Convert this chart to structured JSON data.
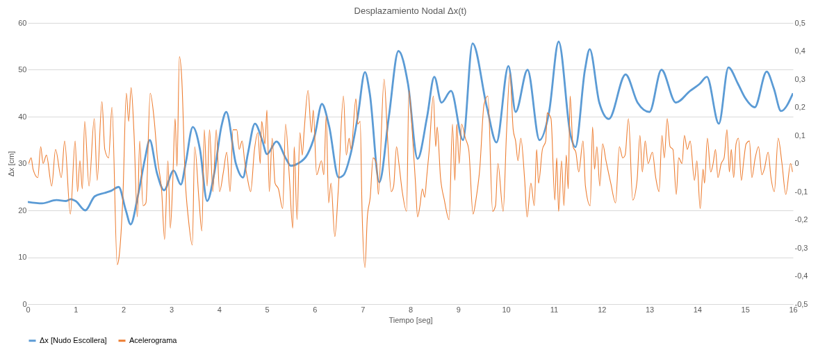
{
  "chart_data": {
    "type": "line",
    "title": "Desplazamiento Nodal Δx(t)",
    "xlabel": "Tiempo [seg]",
    "ylabel": "Δx [cm]",
    "xlim": [
      0,
      16
    ],
    "xticks": [
      0,
      1,
      2,
      3,
      4,
      5,
      6,
      7,
      8,
      9,
      10,
      11,
      12,
      13,
      14,
      15,
      16
    ],
    "ylim": [
      0,
      60
    ],
    "yticks": [
      0,
      10,
      20,
      30,
      40,
      50,
      60
    ],
    "y2lim": [
      -0.5,
      0.5
    ],
    "y2ticks": [
      {
        "value": -0.5,
        "label": "-0,5"
      },
      {
        "value": -0.4,
        "label": "-0,4"
      },
      {
        "value": -0.3,
        "label": "-0,3"
      },
      {
        "value": -0.2,
        "label": "-0,2"
      },
      {
        "value": -0.1,
        "label": "-0,1"
      },
      0,
      {
        "value": 0.1,
        "label": "0,1"
      },
      {
        "value": 0.2,
        "label": "0,2"
      },
      {
        "value": 0.3,
        "label": "0,3"
      },
      {
        "value": 0.4,
        "label": "0,4"
      },
      {
        "value": 0.5,
        "label": "0,5"
      }
    ],
    "grid": "y",
    "legend": "bottom",
    "marker": "none",
    "line_style": "solid",
    "series": [
      {
        "name": "Δx [Nudo Escollera]",
        "color": "#5b9bd5",
        "x": [
          0,
          0.3,
          0.6,
          0.8,
          0.9,
          1.0,
          1.2,
          1.4,
          1.6,
          1.75,
          1.9,
          2.05,
          2.15,
          2.3,
          2.45,
          2.55,
          2.7,
          2.85,
          3.05,
          3.2,
          3.3,
          3.45,
          3.6,
          3.75,
          3.9,
          4.05,
          4.15,
          4.35,
          4.5,
          4.6,
          4.75,
          4.9,
          5.0,
          5.2,
          5.4,
          5.5,
          5.65,
          5.85,
          6.0,
          6.15,
          6.3,
          6.5,
          6.6,
          6.75,
          6.9,
          7.05,
          7.15,
          7.35,
          7.55,
          7.75,
          7.95,
          8.15,
          8.35,
          8.5,
          8.65,
          8.85,
          9.1,
          9.3,
          9.6,
          9.8,
          10.05,
          10.2,
          10.45,
          10.7,
          10.9,
          11.1,
          11.35,
          11.45,
          11.65,
          11.75,
          11.95,
          12.15,
          12.5,
          12.75,
          13.0,
          13.25,
          13.55,
          13.85,
          14.05,
          14.2,
          14.45,
          14.65,
          14.85,
          15.0,
          15.2,
          15.45,
          15.6,
          15.75,
          16.0
        ],
        "values": [
          21.8,
          21.5,
          22.2,
          22.0,
          22.4,
          22.0,
          20.0,
          23.0,
          23.7,
          24.2,
          25.0,
          20,
          17,
          23,
          31,
          35,
          28,
          24.3,
          28.5,
          25.5,
          30,
          37.8,
          33,
          22,
          28,
          38,
          41,
          30,
          27,
          32,
          38.5,
          35,
          32,
          34.7,
          31,
          29.5,
          30,
          32,
          36,
          42.7,
          38,
          27,
          27.5,
          32,
          40,
          49.5,
          45,
          26,
          40,
          54,
          47,
          31,
          40,
          48.5,
          43,
          45.5,
          35,
          55.6,
          42,
          34.5,
          50.8,
          41,
          50,
          35,
          41,
          56,
          36,
          33.5,
          50,
          54.4,
          43,
          39.5,
          49,
          43,
          41,
          50,
          43,
          45.5,
          47,
          48.5,
          38.5,
          50.5,
          47,
          44,
          42,
          49.6,
          46,
          41.2,
          45
        ]
      },
      {
        "name": "Acelerograma",
        "color": "#ed7d31",
        "axis": "y2",
        "x": [
          0.02,
          0.07,
          0.11,
          0.21,
          0.27,
          0.32,
          0.39,
          0.5,
          0.58,
          0.7,
          0.77,
          0.89,
          0.99,
          1.04,
          1.09,
          1.14,
          1.19,
          1.28,
          1.39,
          1.45,
          1.55,
          1.61,
          1.69,
          1.76,
          1.87,
          1.91,
          1.99,
          2.06,
          2.11,
          2.16,
          2.22,
          2.29,
          2.34,
          2.41,
          2.47,
          2.56,
          2.64,
          2.71,
          2.8,
          2.86,
          2.93,
          2.98,
          3.03,
          3.08,
          3.12,
          3.17,
          3.22,
          3.29,
          3.36,
          3.44,
          3.49,
          3.58,
          3.64,
          3.69,
          3.75,
          3.8,
          3.87,
          3.94,
          4.01,
          4.09,
          4.16,
          4.23,
          4.29,
          4.37,
          4.42,
          4.48,
          4.54,
          4.59,
          4.66,
          4.74,
          4.81,
          4.86,
          4.89,
          4.96,
          5.0,
          5.05,
          5.11,
          5.17,
          5.24,
          5.33,
          5.39,
          5.47,
          5.54,
          5.57,
          5.63,
          5.69,
          5.74,
          5.78,
          5.86,
          5.93,
          5.97,
          6.04,
          6.14,
          6.19,
          6.24,
          6.29,
          6.34,
          6.42,
          6.49,
          6.6,
          6.66,
          6.72,
          6.76,
          6.86,
          6.9,
          6.95,
          6.99,
          7.05,
          7.1,
          7.16,
          7.22,
          7.29,
          7.33,
          7.45,
          7.52,
          7.6,
          7.65,
          7.71,
          7.76,
          7.83,
          7.92,
          7.97,
          8.04,
          8.11,
          8.15,
          8.2,
          8.25,
          8.3,
          8.34,
          8.39,
          8.48,
          8.53,
          8.56,
          8.63,
          8.71,
          8.81,
          8.88,
          8.93,
          8.97,
          9.02,
          9.07,
          9.15,
          9.22,
          9.31,
          9.37,
          9.45,
          9.54,
          9.62,
          9.72,
          9.78,
          9.83,
          9.94,
          10.01,
          10.08,
          10.15,
          10.2,
          10.25,
          10.31,
          10.39,
          10.44,
          10.52,
          10.59,
          10.64,
          10.68,
          10.76,
          10.83,
          10.86,
          10.94,
          11.02,
          11.06,
          11.1,
          11.16,
          11.21,
          11.26,
          11.3,
          11.34,
          11.4,
          11.46,
          11.52,
          11.61,
          11.66,
          11.76,
          11.81,
          11.85,
          11.9,
          11.96,
          12.02,
          12.09,
          12.19,
          12.29,
          12.37,
          12.44,
          12.49,
          12.56,
          12.65,
          12.74,
          12.8,
          12.85,
          12.91,
          12.97,
          13.06,
          13.13,
          13.2,
          13.26,
          13.31,
          13.37,
          13.43,
          13.49,
          13.56,
          13.61,
          13.68,
          13.73,
          13.79,
          13.85,
          13.94,
          13.99,
          14.06,
          14.12,
          14.15,
          14.21,
          14.28,
          14.33,
          14.38,
          14.43,
          14.5,
          14.56,
          14.62,
          14.67,
          14.71,
          14.76,
          14.81,
          14.86,
          14.92,
          14.97,
          15.02,
          15.09,
          15.14,
          15.21,
          15.28,
          15.35,
          15.4,
          15.48,
          15.54,
          15.61,
          15.69,
          15.77,
          15.85,
          15.95,
          15.99
        ],
        "values": [
          0.0,
          0.02,
          -0.02,
          -0.05,
          0.06,
          0.0,
          0.03,
          -0.08,
          0.05,
          -0.05,
          0.08,
          -0.18,
          0.08,
          -0.1,
          0.01,
          -0.09,
          0.15,
          -0.08,
          0.16,
          -0.06,
          0.22,
          0.05,
          0.02,
          0.2,
          -0.36,
          -0.33,
          -0.11,
          0.25,
          0.15,
          0.27,
          0.11,
          -0.19,
          0.08,
          -0.15,
          -0.14,
          0.25,
          0.16,
          0.02,
          -0.1,
          -0.27,
          0.01,
          -0.23,
          -0.07,
          0.16,
          -0.01,
          0.38,
          0.3,
          -0.05,
          -0.2,
          -0.29,
          0.06,
          -0.13,
          -0.24,
          0.12,
          -0.08,
          0.12,
          -0.1,
          0.12,
          -0.1,
          -0.03,
          0.04,
          -0.1,
          0.12,
          0.12,
          0.05,
          0.08,
          0.0,
          -0.05,
          -0.1,
          0.05,
          0.11,
          0.0,
          0.15,
          0.07,
          0.19,
          -0.1,
          0.09,
          -0.07,
          -0.09,
          -0.16,
          0.14,
          -0.05,
          -0.23,
          0.06,
          -0.2,
          0.11,
          0.03,
          0.12,
          0.26,
          0.11,
          0.19,
          -0.04,
          0.01,
          -0.04,
          0.17,
          -0.14,
          -0.07,
          -0.26,
          -0.1,
          0.24,
          0.03,
          0.09,
          0.05,
          0.23,
          0.14,
          0.15,
          -0.17,
          -0.37,
          -0.19,
          -0.12,
          0.02,
          0.0,
          -0.11,
          0.3,
          0.1,
          -0.1,
          -0.08,
          0.06,
          0.0,
          -0.1,
          -0.17,
          0.26,
          0.11,
          -0.08,
          -0.19,
          -0.15,
          -0.09,
          -0.12,
          -0.05,
          0.04,
          0.24,
          0.06,
          0.13,
          -0.05,
          -0.13,
          -0.2,
          0.14,
          -0.06,
          0.14,
          0.0,
          0.14,
          0.09,
          0.05,
          -0.18,
          -0.13,
          -0.02,
          0.21,
          0.24,
          -0.17,
          -0.15,
          0.0,
          -0.17,
          0.11,
          0.32,
          0.12,
          0.08,
          0.01,
          0.09,
          -0.06,
          -0.19,
          -0.07,
          -0.15,
          0.05,
          -0.07,
          0.05,
          0.08,
          0.18,
          0.16,
          -0.13,
          0.02,
          -0.17,
          0.01,
          -0.15,
          0.03,
          -0.09,
          0.24,
          0.06,
          0.04,
          -0.03,
          0.08,
          -0.08,
          -0.15,
          0.13,
          -0.02,
          0.06,
          -0.08,
          0.07,
          0.01,
          -0.07,
          -0.14,
          0.06,
          0.02,
          0.03,
          0.16,
          -0.13,
          -0.06,
          0.1,
          -0.03,
          0.08,
          0.0,
          0.04,
          -0.05,
          -0.1,
          0.1,
          0.02,
          0.16,
          0.06,
          0.05,
          -0.11,
          0.02,
          0.0,
          0.1,
          0.05,
          0.08,
          -0.06,
          0.01,
          -0.16,
          -0.02,
          -0.07,
          0.09,
          -0.03,
          0.0,
          0.05,
          -0.05,
          0.0,
          0.02,
          0.12,
          -0.03,
          0.05,
          -0.05,
          0.07,
          0.09,
          -0.06,
          0.01,
          0.07,
          0.08,
          -0.05,
          0.02,
          0.06,
          -0.04,
          -0.02,
          0.04,
          -0.05,
          -0.1,
          0.09,
          0.0,
          -0.11,
          0.0,
          -0.03
        ]
      }
    ]
  }
}
